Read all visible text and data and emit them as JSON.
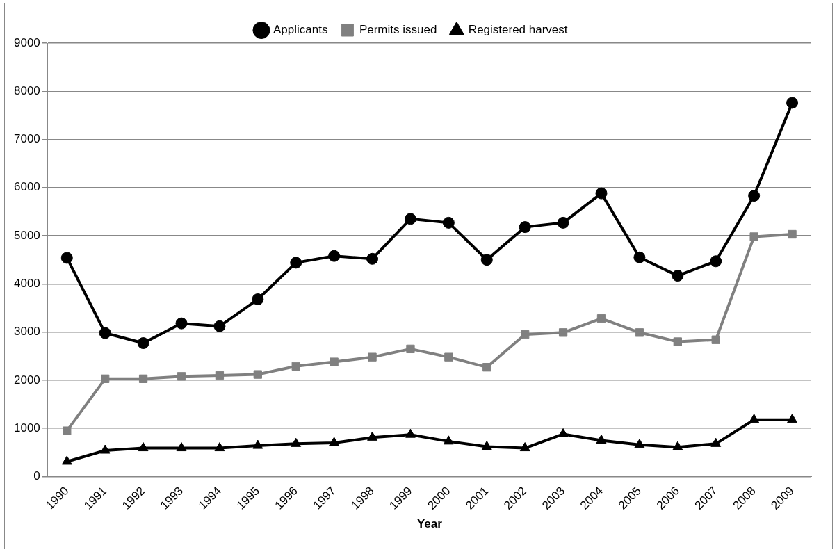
{
  "chart_data": {
    "type": "line",
    "xlabel": "Year",
    "categories": [
      "1990",
      "1991",
      "1992",
      "1993",
      "1994",
      "1995",
      "1996",
      "1997",
      "1998",
      "1999",
      "2000",
      "2001",
      "2002",
      "2003",
      "2004",
      "2005",
      "2006",
      "2007",
      "2008",
      "2009"
    ],
    "series": [
      {
        "name": "Applicants",
        "color": "#000000",
        "marker": "circle",
        "values": [
          4540,
          2980,
          2770,
          3180,
          3120,
          3680,
          4440,
          4580,
          4520,
          5350,
          5270,
          4500,
          5180,
          5270,
          5880,
          4550,
          4170,
          4470,
          5830,
          7760
        ]
      },
      {
        "name": "Permits issued",
        "color": "#808080",
        "marker": "square",
        "values": [
          950,
          2030,
          2030,
          2080,
          2100,
          2120,
          2290,
          2380,
          2480,
          2650,
          2480,
          2270,
          2950,
          2990,
          3280,
          2990,
          2800,
          2840,
          4980,
          5030
        ]
      },
      {
        "name": "Registered harvest",
        "color": "#000000",
        "marker": "triangle",
        "values": [
          310,
          540,
          590,
          590,
          590,
          640,
          680,
          700,
          810,
          870,
          730,
          620,
          590,
          880,
          750,
          660,
          610,
          680,
          1180,
          1180
        ]
      }
    ],
    "ylim": [
      0,
      9000
    ],
    "yticks": [
      0,
      1000,
      2000,
      3000,
      4000,
      5000,
      6000,
      7000,
      8000,
      9000
    ],
    "grid": "y",
    "legend": "top",
    "line_style": "solid"
  }
}
